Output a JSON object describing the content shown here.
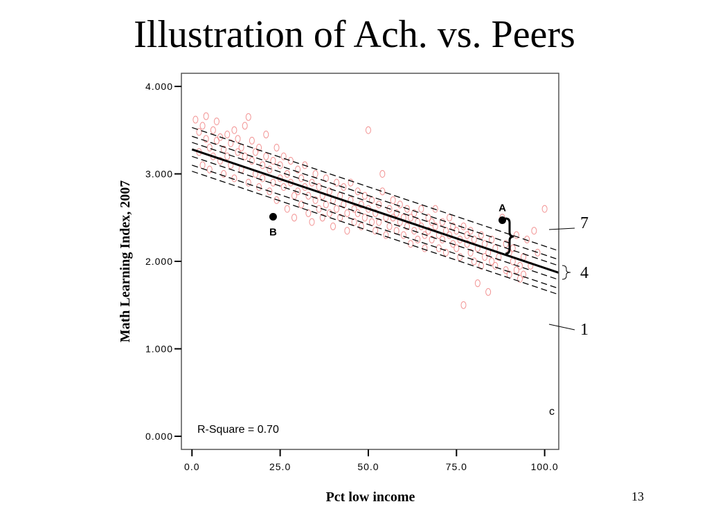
{
  "slide": {
    "title": "Illustration of Ach. vs. Peers",
    "number": "13"
  },
  "colors": {
    "points": "#f08080",
    "lines": "#000000"
  },
  "chart_data": {
    "type": "scatter",
    "xlabel": "Pct low income",
    "ylabel": "Math Learning Index, 2007",
    "xlim": [
      -3,
      104
    ],
    "ylim": [
      -0.15,
      4.15
    ],
    "x_ticks": [
      0,
      25,
      50,
      75,
      100
    ],
    "x_tick_labels": [
      "0.0",
      "25.0",
      "50.0",
      "75.0",
      "100.0"
    ],
    "y_ticks": [
      0,
      1,
      2,
      3,
      4
    ],
    "y_tick_labels": [
      "0.000",
      "1.000",
      "2.000",
      "3.000",
      "4.000"
    ],
    "grid": false,
    "annotation": "R-Square = 0.70",
    "fit_line": {
      "x": [
        0,
        104
      ],
      "y": [
        3.28,
        1.87
      ]
    },
    "bands": [
      {
        "x": [
          0,
          104
        ],
        "y": [
          3.53,
          2.12
        ]
      },
      {
        "x": [
          0,
          104
        ],
        "y": [
          3.43,
          2.02
        ]
      },
      {
        "x": [
          0,
          104
        ],
        "y": [
          3.36,
          1.95
        ]
      },
      {
        "x": [
          0,
          104
        ],
        "y": [
          3.2,
          1.79
        ]
      },
      {
        "x": [
          0,
          104
        ],
        "y": [
          3.1,
          1.69
        ]
      },
      {
        "x": [
          0,
          104
        ],
        "y": [
          3.03,
          1.62
        ]
      }
    ],
    "highlighted_points": [
      {
        "label": "A",
        "x": 88,
        "y": 2.47
      },
      {
        "label": "B",
        "x": 23,
        "y": 2.51
      }
    ],
    "band_labels": [
      "7",
      "4",
      "1"
    ],
    "stray_glyph": "c",
    "scatter_points": [
      {
        "x": 1,
        "y": 3.62
      },
      {
        "x": 2,
        "y": 3.48
      },
      {
        "x": 2,
        "y": 3.25
      },
      {
        "x": 3,
        "y": 3.55
      },
      {
        "x": 3,
        "y": 3.1
      },
      {
        "x": 4,
        "y": 3.4
      },
      {
        "x": 4,
        "y": 3.66
      },
      {
        "x": 5,
        "y": 3.3
      },
      {
        "x": 5,
        "y": 3.05
      },
      {
        "x": 6,
        "y": 3.5
      },
      {
        "x": 6,
        "y": 3.2
      },
      {
        "x": 7,
        "y": 3.38
      },
      {
        "x": 7,
        "y": 3.6
      },
      {
        "x": 8,
        "y": 3.15
      },
      {
        "x": 8,
        "y": 3.42
      },
      {
        "x": 9,
        "y": 3.28
      },
      {
        "x": 9,
        "y": 3.0
      },
      {
        "x": 10,
        "y": 3.45
      },
      {
        "x": 10,
        "y": 3.2
      },
      {
        "x": 11,
        "y": 3.35
      },
      {
        "x": 11,
        "y": 3.1
      },
      {
        "x": 12,
        "y": 3.5
      },
      {
        "x": 12,
        "y": 2.95
      },
      {
        "x": 13,
        "y": 3.25
      },
      {
        "x": 13,
        "y": 3.4
      },
      {
        "x": 14,
        "y": 3.05
      },
      {
        "x": 14,
        "y": 3.3
      },
      {
        "x": 15,
        "y": 3.2
      },
      {
        "x": 15,
        "y": 3.55
      },
      {
        "x": 16,
        "y": 3.65
      },
      {
        "x": 16,
        "y": 2.9
      },
      {
        "x": 17,
        "y": 3.15
      },
      {
        "x": 17,
        "y": 3.38
      },
      {
        "x": 18,
        "y": 3.0
      },
      {
        "x": 18,
        "y": 3.25
      },
      {
        "x": 19,
        "y": 2.85
      },
      {
        "x": 19,
        "y": 3.3
      },
      {
        "x": 20,
        "y": 3.1
      },
      {
        "x": 20,
        "y": 2.95
      },
      {
        "x": 21,
        "y": 3.2
      },
      {
        "x": 21,
        "y": 3.45
      },
      {
        "x": 22,
        "y": 2.8
      },
      {
        "x": 22,
        "y": 3.05
      },
      {
        "x": 23,
        "y": 3.15
      },
      {
        "x": 23,
        "y": 2.9
      },
      {
        "x": 24,
        "y": 2.7
      },
      {
        "x": 24,
        "y": 3.3
      },
      {
        "x": 25,
        "y": 2.95
      },
      {
        "x": 25,
        "y": 3.1
      },
      {
        "x": 26,
        "y": 2.85
      },
      {
        "x": 26,
        "y": 3.2
      },
      {
        "x": 27,
        "y": 2.6
      },
      {
        "x": 27,
        "y": 3.0
      },
      {
        "x": 28,
        "y": 2.9
      },
      {
        "x": 28,
        "y": 3.15
      },
      {
        "x": 29,
        "y": 2.75
      },
      {
        "x": 29,
        "y": 2.5
      },
      {
        "x": 30,
        "y": 3.05
      },
      {
        "x": 30,
        "y": 2.8
      },
      {
        "x": 31,
        "y": 2.95
      },
      {
        "x": 31,
        "y": 2.65
      },
      {
        "x": 32,
        "y": 2.85
      },
      {
        "x": 32,
        "y": 3.1
      },
      {
        "x": 33,
        "y": 2.55
      },
      {
        "x": 33,
        "y": 2.75
      },
      {
        "x": 34,
        "y": 2.9
      },
      {
        "x": 34,
        "y": 2.45
      },
      {
        "x": 35,
        "y": 2.7
      },
      {
        "x": 35,
        "y": 3.0
      },
      {
        "x": 36,
        "y": 2.6
      },
      {
        "x": 36,
        "y": 2.85
      },
      {
        "x": 37,
        "y": 2.75
      },
      {
        "x": 37,
        "y": 2.5
      },
      {
        "x": 38,
        "y": 2.95
      },
      {
        "x": 38,
        "y": 2.65
      },
      {
        "x": 39,
        "y": 2.8
      },
      {
        "x": 39,
        "y": 2.55
      },
      {
        "x": 40,
        "y": 2.7
      },
      {
        "x": 40,
        "y": 2.4
      },
      {
        "x": 41,
        "y": 2.9
      },
      {
        "x": 41,
        "y": 2.6
      },
      {
        "x": 42,
        "y": 2.75
      },
      {
        "x": 42,
        "y": 2.5
      },
      {
        "x": 43,
        "y": 2.65
      },
      {
        "x": 43,
        "y": 2.85
      },
      {
        "x": 44,
        "y": 2.55
      },
      {
        "x": 44,
        "y": 2.35
      },
      {
        "x": 45,
        "y": 2.7
      },
      {
        "x": 45,
        "y": 2.9
      },
      {
        "x": 46,
        "y": 2.6
      },
      {
        "x": 46,
        "y": 2.45
      },
      {
        "x": 47,
        "y": 2.8
      },
      {
        "x": 47,
        "y": 2.55
      },
      {
        "x": 48,
        "y": 2.65
      },
      {
        "x": 48,
        "y": 2.4
      },
      {
        "x": 49,
        "y": 2.75
      },
      {
        "x": 49,
        "y": 2.5
      },
      {
        "x": 50,
        "y": 2.6
      },
      {
        "x": 50,
        "y": 3.5
      },
      {
        "x": 51,
        "y": 2.45
      },
      {
        "x": 51,
        "y": 2.7
      },
      {
        "x": 52,
        "y": 2.55
      },
      {
        "x": 52,
        "y": 2.35
      },
      {
        "x": 53,
        "y": 2.65
      },
      {
        "x": 53,
        "y": 2.45
      },
      {
        "x": 54,
        "y": 2.8
      },
      {
        "x": 54,
        "y": 3.0
      },
      {
        "x": 55,
        "y": 2.5
      },
      {
        "x": 55,
        "y": 2.3
      },
      {
        "x": 56,
        "y": 2.6
      },
      {
        "x": 56,
        "y": 2.4
      },
      {
        "x": 57,
        "y": 2.7
      },
      {
        "x": 57,
        "y": 2.5
      },
      {
        "x": 58,
        "y": 2.35
      },
      {
        "x": 58,
        "y": 2.55
      },
      {
        "x": 59,
        "y": 2.45
      },
      {
        "x": 59,
        "y": 2.65
      },
      {
        "x": 60,
        "y": 2.3
      },
      {
        "x": 60,
        "y": 2.5
      },
      {
        "x": 61,
        "y": 2.6
      },
      {
        "x": 61,
        "y": 2.4
      },
      {
        "x": 62,
        "y": 2.2
      },
      {
        "x": 62,
        "y": 2.5
      },
      {
        "x": 63,
        "y": 2.35
      },
      {
        "x": 63,
        "y": 2.55
      },
      {
        "x": 64,
        "y": 2.45
      },
      {
        "x": 64,
        "y": 2.25
      },
      {
        "x": 65,
        "y": 2.6
      },
      {
        "x": 65,
        "y": 2.4
      },
      {
        "x": 66,
        "y": 2.3
      },
      {
        "x": 66,
        "y": 2.15
      },
      {
        "x": 67,
        "y": 2.5
      },
      {
        "x": 67,
        "y": 2.35
      },
      {
        "x": 68,
        "y": 2.25
      },
      {
        "x": 68,
        "y": 2.45
      },
      {
        "x": 69,
        "y": 2.4
      },
      {
        "x": 69,
        "y": 2.6
      },
      {
        "x": 70,
        "y": 2.3
      },
      {
        "x": 70,
        "y": 2.15
      },
      {
        "x": 71,
        "y": 2.45
      },
      {
        "x": 71,
        "y": 2.25
      },
      {
        "x": 72,
        "y": 2.35
      },
      {
        "x": 72,
        "y": 2.1
      },
      {
        "x": 73,
        "y": 2.5
      },
      {
        "x": 73,
        "y": 2.3
      },
      {
        "x": 74,
        "y": 2.2
      },
      {
        "x": 74,
        "y": 2.4
      },
      {
        "x": 75,
        "y": 2.15
      },
      {
        "x": 75,
        "y": 2.35
      },
      {
        "x": 76,
        "y": 2.25
      },
      {
        "x": 76,
        "y": 2.05
      },
      {
        "x": 77,
        "y": 2.4
      },
      {
        "x": 77,
        "y": 1.5
      },
      {
        "x": 78,
        "y": 2.2
      },
      {
        "x": 78,
        "y": 2.3
      },
      {
        "x": 79,
        "y": 2.1
      },
      {
        "x": 79,
        "y": 2.35
      },
      {
        "x": 80,
        "y": 2.25
      },
      {
        "x": 80,
        "y": 2.0
      },
      {
        "x": 81,
        "y": 2.15
      },
      {
        "x": 81,
        "y": 1.75
      },
      {
        "x": 82,
        "y": 2.3
      },
      {
        "x": 82,
        "y": 1.95
      },
      {
        "x": 83,
        "y": 2.05
      },
      {
        "x": 83,
        "y": 2.2
      },
      {
        "x": 84,
        "y": 2.1
      },
      {
        "x": 84,
        "y": 1.65
      },
      {
        "x": 85,
        "y": 2.0
      },
      {
        "x": 85,
        "y": 2.25
      },
      {
        "x": 86,
        "y": 1.95
      },
      {
        "x": 86,
        "y": 2.15
      },
      {
        "x": 87,
        "y": 2.05
      },
      {
        "x": 88,
        "y": 2.5
      },
      {
        "x": 89,
        "y": 1.9
      },
      {
        "x": 89,
        "y": 2.2
      },
      {
        "x": 90,
        "y": 2.1
      },
      {
        "x": 90,
        "y": 1.85
      },
      {
        "x": 91,
        "y": 2.0
      },
      {
        "x": 91,
        "y": 2.15
      },
      {
        "x": 92,
        "y": 1.9
      },
      {
        "x": 92,
        "y": 2.3
      },
      {
        "x": 93,
        "y": 1.95
      },
      {
        "x": 93,
        "y": 1.8
      },
      {
        "x": 94,
        "y": 2.05
      },
      {
        "x": 94,
        "y": 1.85
      },
      {
        "x": 95,
        "y": 2.25
      },
      {
        "x": 96,
        "y": 1.95
      },
      {
        "x": 97,
        "y": 2.35
      },
      {
        "x": 98,
        "y": 2.1
      },
      {
        "x": 100,
        "y": 2.6
      }
    ]
  }
}
